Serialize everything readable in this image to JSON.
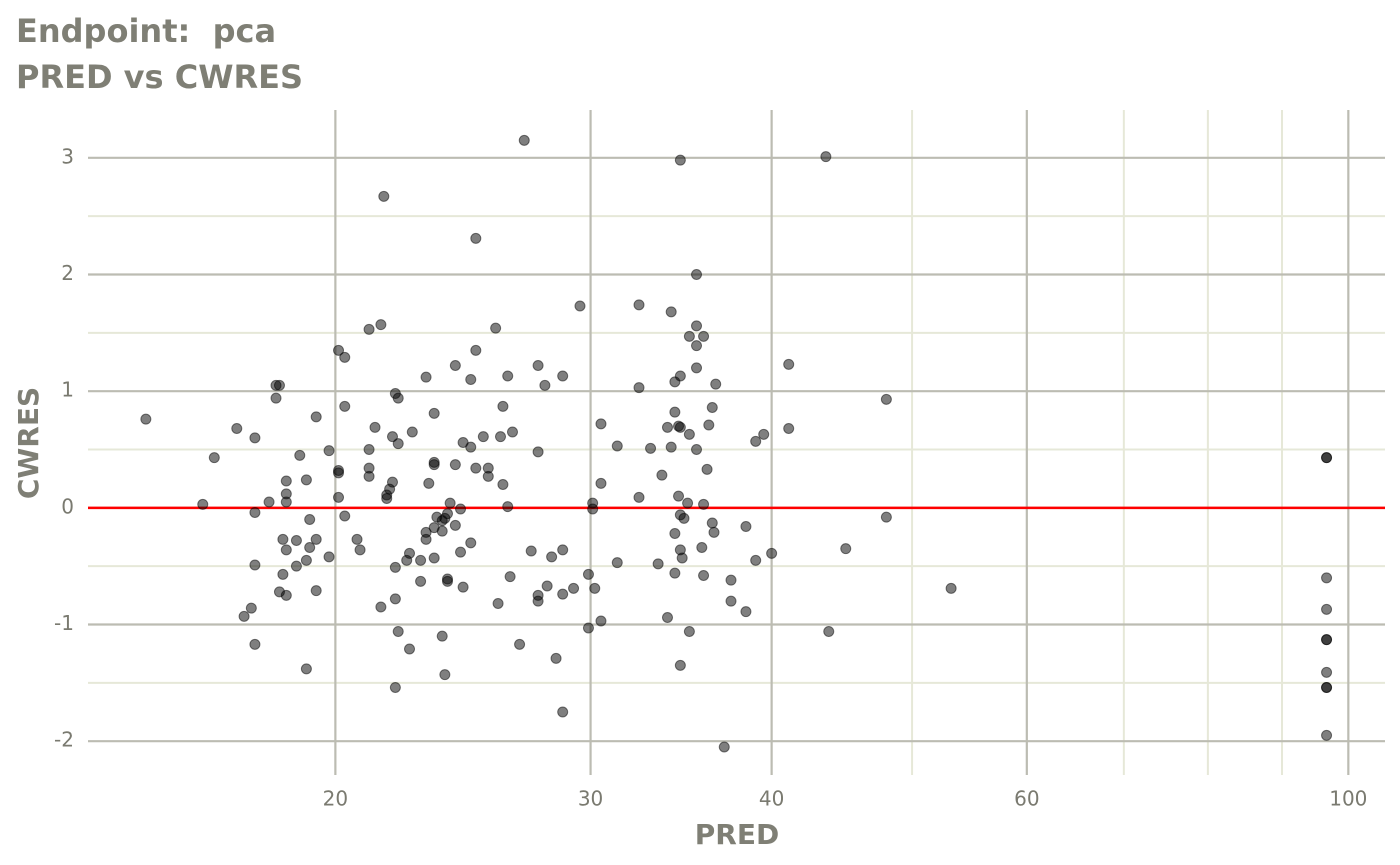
{
  "chart_data": {
    "type": "scatter",
    "title": "Endpoint:  pca",
    "subtitle": "PRED vs CWRES",
    "xlabel": "PRED",
    "ylabel": "CWRES",
    "xscale": "log",
    "xlim": [
      13.5,
      106
    ],
    "ylim": [
      -2.29,
      3.41
    ],
    "xticks": [
      20,
      30,
      40,
      60,
      100
    ],
    "yticks": [
      -2,
      -1,
      0,
      1,
      2,
      3
    ],
    "xminor": [
      50,
      70,
      80,
      90
    ],
    "yminor": [
      -1.5,
      -0.5,
      0.5,
      1.5,
      2.5
    ],
    "grid": true,
    "color": "#000000",
    "point_alpha": 0.5,
    "hline": 0,
    "hline_color": "#ff0000",
    "x": [
      14.8,
      16.2,
      16.5,
      17.1,
      17.3,
      17.5,
      17.6,
      17.6,
      17.6,
      17.6,
      18.0,
      18.2,
      18.3,
      18.2,
      18.3,
      18.4,
      18.4,
      18.5,
      18.5,
      18.5,
      18.5,
      18.5,
      18.8,
      18.8,
      18.9,
      19.1,
      19.1,
      19.1,
      19.2,
      19.2,
      19.4,
      19.4,
      19.4,
      19.8,
      19.8,
      20.1,
      20.1,
      20.1,
      20.1,
      20.3,
      20.3,
      20.3,
      20.7,
      20.8,
      21.1,
      21.1,
      21.1,
      21.1,
      21.3,
      21.5,
      21.5,
      21.6,
      21.7,
      21.7,
      21.8,
      21.9,
      21.9,
      22.0,
      22.0,
      22.0,
      22.0,
      22.1,
      22.1,
      22.1,
      22.4,
      22.5,
      22.5,
      22.6,
      22.9,
      22.9,
      23.1,
      23.1,
      23.1,
      23.2,
      23.4,
      23.4,
      23.4,
      23.4,
      23.4,
      23.5,
      23.7,
      23.7,
      23.7,
      23.8,
      23.9,
      23.9,
      23.9,
      23.8,
      24.0,
      24.2,
      24.2,
      24.2,
      24.4,
      24.4,
      24.5,
      24.5,
      24.8,
      24.8,
      24.8,
      25.0,
      25.0,
      25.0,
      25.3,
      25.5,
      25.5,
      25.8,
      25.9,
      26.0,
      26.1,
      26.1,
      26.3,
      26.3,
      26.4,
      26.5,
      26.8,
      27.0,
      27.3,
      27.6,
      27.6,
      27.6,
      27.6,
      27.9,
      28.0,
      28.2,
      28.4,
      28.7,
      28.7,
      28.7,
      28.7,
      29.2,
      29.5,
      29.9,
      29.9,
      30.1,
      30.1,
      30.2,
      30.5,
      30.5,
      30.5,
      31.3,
      31.3,
      32.4,
      32.4,
      32.4,
      33.0,
      33.4,
      33.6,
      33.9,
      33.9,
      34.1,
      34.1,
      34.3,
      34.3,
      34.3,
      34.3,
      34.5,
      34.5,
      34.6,
      34.6,
      34.6,
      34.6,
      34.6,
      34.7,
      34.6,
      34.8,
      35.0,
      35.1,
      35.1,
      35.1,
      35.5,
      35.5,
      35.5,
      35.5,
      35.5,
      35.8,
      35.9,
      35.9,
      35.9,
      36.1,
      36.2,
      36.4,
      36.4,
      36.5,
      36.6,
      37.5,
      37.5,
      38.4,
      38.4,
      39.0,
      39.0,
      39.5,
      40.0,
      41.1,
      41.1,
      43.6,
      43.8,
      45.0,
      48.0,
      48.0,
      53.2,
      96.6,
      96.6,
      96.6,
      96.6,
      96.6,
      96.6,
      96.6,
      96.6,
      96.6,
      96.6,
      37.1
    ],
    "values": [
      0.76,
      0.03,
      0.43,
      0.68,
      -0.93,
      -0.86,
      0.6,
      -0.04,
      -0.49,
      -1.17,
      0.05,
      1.05,
      1.05,
      0.94,
      -0.72,
      -0.27,
      -0.57,
      0.23,
      0.12,
      0.05,
      -0.36,
      -0.75,
      -0.28,
      -0.5,
      0.45,
      0.24,
      -0.45,
      -1.38,
      -0.1,
      -0.34,
      0.78,
      -0.27,
      -0.71,
      0.49,
      -0.42,
      1.35,
      0.32,
      0.3,
      0.09,
      1.29,
      0.87,
      -0.07,
      -0.27,
      -0.36,
      1.53,
      0.5,
      0.34,
      0.27,
      0.69,
      1.57,
      -0.85,
      2.67,
      0.11,
      0.08,
      0.16,
      0.22,
      0.61,
      0.98,
      -0.51,
      -0.78,
      -1.54,
      0.94,
      0.55,
      -1.06,
      -0.45,
      -1.21,
      -0.39,
      0.65,
      -0.63,
      -0.45,
      1.12,
      -0.21,
      -0.27,
      0.21,
      0.81,
      0.39,
      0.37,
      -0.17,
      -0.43,
      -0.08,
      -0.2,
      -1.1,
      -0.11,
      -0.09,
      -0.05,
      -0.61,
      -0.63,
      -1.43,
      0.04,
      -0.15,
      0.37,
      1.22,
      -0.01,
      -0.38,
      0.56,
      -0.68,
      1.1,
      0.52,
      -0.3,
      2.31,
      1.35,
      0.34,
      0.61,
      0.34,
      0.27,
      1.54,
      -0.82,
      0.61,
      0.87,
      0.2,
      1.13,
      0.01,
      -0.59,
      0.65,
      -1.17,
      3.15,
      -0.37,
      1.22,
      0.48,
      -0.75,
      -0.8,
      1.05,
      -0.67,
      -0.42,
      -1.29,
      1.13,
      -0.36,
      -0.74,
      -1.75,
      -0.69,
      1.73,
      -0.57,
      -1.03,
      0.04,
      -0.01,
      -0.69,
      0.21,
      0.72,
      -0.97,
      0.53,
      -0.47,
      1.74,
      1.03,
      0.09,
      0.51,
      -0.48,
      0.28,
      0.69,
      -0.94,
      1.68,
      0.52,
      1.08,
      0.82,
      -0.22,
      -0.56,
      0.7,
      0.1,
      0.69,
      1.13,
      2.98,
      -0.06,
      -0.36,
      -0.43,
      -1.35,
      -0.09,
      0.04,
      0.63,
      1.47,
      -1.06,
      2.0,
      1.56,
      1.39,
      1.2,
      0.5,
      -0.34,
      1.47,
      -0.58,
      0.03,
      0.33,
      0.71,
      0.86,
      -0.13,
      -0.21,
      1.06,
      -0.62,
      -0.8,
      -0.16,
      -0.89,
      0.57,
      -0.45,
      0.63,
      -0.39,
      1.23,
      0.68,
      3.01,
      -1.06,
      -0.35,
      0.93,
      -0.08,
      -0.69,
      0.43,
      0.43,
      -0.6,
      -0.87,
      -1.13,
      -1.13,
      -1.41,
      -1.54,
      -1.54,
      -1.95,
      -2.05
    ]
  }
}
